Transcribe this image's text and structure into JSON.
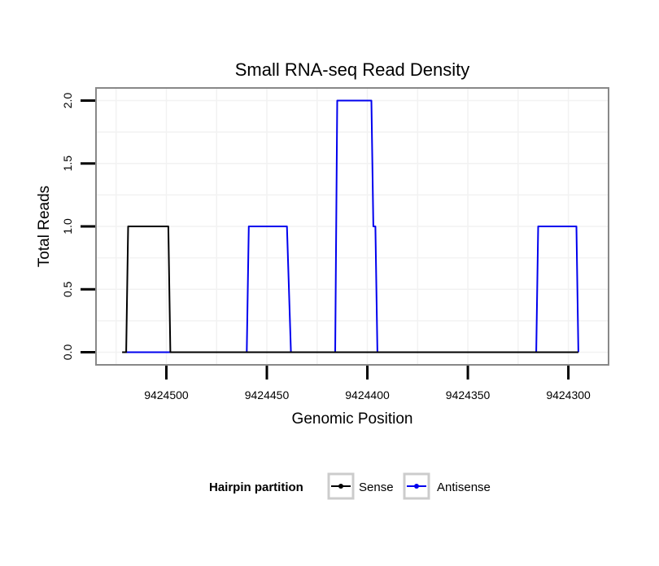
{
  "chart_data": {
    "type": "line",
    "title": "Small RNA-seq Read Density",
    "xlabel": "Genomic Position",
    "ylabel": "Total Reads",
    "xlim": [
      9424535,
      9424280
    ],
    "ylim": [
      -0.1,
      2.1
    ],
    "x_reversed": true,
    "xticks": [
      9424500,
      9424450,
      9424400,
      9424350,
      9424300
    ],
    "xtick_labels": [
      "9424500",
      "9424450",
      "9424400",
      "9424350",
      "9424300"
    ],
    "yticks": [
      0.0,
      0.5,
      1.0,
      1.5,
      2.0
    ],
    "ytick_labels": [
      "0.0",
      "0.5",
      "1.0",
      "1.5",
      "2.0"
    ],
    "grid": true,
    "legend": {
      "title": "Hairpin partition",
      "position": "bottom",
      "entries": [
        "Sense",
        "Antisense"
      ]
    },
    "series": [
      {
        "name": "Sense",
        "color": "#000000",
        "x": [
          9424522,
          9424520,
          9424519,
          9424500,
          9424499,
          9424498,
          9424295
        ],
        "y": [
          0,
          0,
          1,
          1,
          1,
          0,
          0
        ]
      },
      {
        "name": "Antisense",
        "color": "#0000ee",
        "x": [
          9424520,
          9424499,
          9424498,
          9424460,
          9424459,
          9424440,
          9424438,
          9424437,
          9424416,
          9424415,
          9424398,
          9424397,
          9424396,
          9424395,
          9424394,
          9424393,
          9424392,
          9424316,
          9424315,
          9424296,
          9424295
        ],
        "y": [
          0,
          0,
          0,
          0,
          1,
          1,
          0,
          0,
          0,
          2,
          2,
          1,
          1,
          0,
          0,
          0,
          0,
          0,
          1,
          1,
          0
        ]
      }
    ]
  }
}
